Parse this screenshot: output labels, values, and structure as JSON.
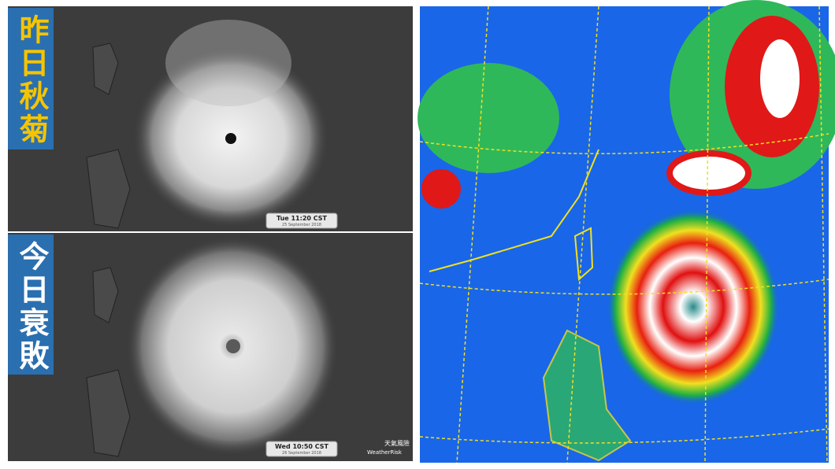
{
  "top_panel": {
    "label": "昨日秋菊",
    "timestamp": "Tue 11:20 CST",
    "date": "25 September 2018"
  },
  "bottom_panel": {
    "label": "今日衰敗",
    "timestamp": "Wed 10:50 CST",
    "date": "26 September 2018",
    "watermark": "天氣風險",
    "watermark_en": "WeatherRisk"
  }
}
